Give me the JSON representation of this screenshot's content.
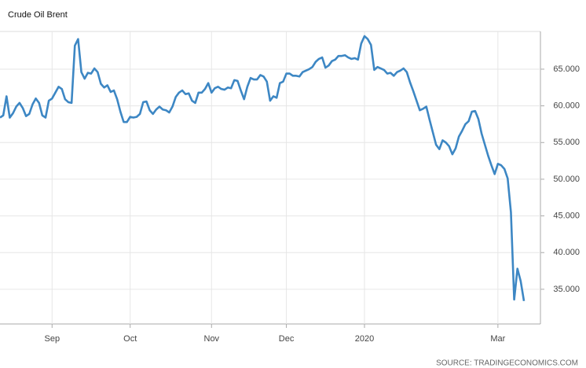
{
  "chart_data": {
    "type": "line",
    "title": "Crude Oil Brent",
    "source": "SOURCE: TRADINGECONOMICS.COM",
    "categories": [
      null,
      null,
      null,
      null,
      null,
      null,
      null,
      null,
      null,
      null,
      null,
      null,
      null,
      null,
      null,
      null,
      "Sep",
      null,
      null,
      null,
      null,
      null,
      null,
      null,
      null,
      null,
      null,
      null,
      null,
      null,
      null,
      null,
      null,
      null,
      null,
      null,
      null,
      null,
      null,
      null,
      "Oct",
      null,
      null,
      null,
      null,
      null,
      null,
      null,
      null,
      null,
      null,
      null,
      null,
      null,
      null,
      null,
      null,
      null,
      null,
      null,
      null,
      null,
      null,
      null,
      null,
      "Nov",
      null,
      null,
      null,
      null,
      null,
      null,
      null,
      null,
      null,
      null,
      null,
      null,
      null,
      null,
      null,
      null,
      null,
      null,
      null,
      null,
      null,
      null,
      "Dec",
      null,
      null,
      null,
      null,
      null,
      null,
      null,
      null,
      null,
      null,
      null,
      null,
      null,
      null,
      null,
      null,
      null,
      null,
      null,
      null,
      null,
      null,
      null,
      "2020",
      null,
      null,
      null,
      null,
      null,
      null,
      null,
      null,
      null,
      null,
      null,
      null,
      null,
      null,
      null,
      null,
      null,
      null,
      null,
      null,
      null,
      null,
      null,
      null,
      null,
      null,
      null,
      null,
      null,
      null,
      null,
      null,
      null,
      null,
      null,
      null,
      null,
      null,
      null,
      null,
      "Mar",
      null,
      null,
      null,
      null,
      null,
      null,
      null,
      null
    ],
    "series": [
      {
        "name": "Crude Oil Brent",
        "color": "#3d87c4",
        "values": [
          58.4,
          58.7,
          61.3,
          58.4,
          59.0,
          59.9,
          60.4,
          59.7,
          58.6,
          58.9,
          60.2,
          61.0,
          60.4,
          58.7,
          58.4,
          60.7,
          61.0,
          61.8,
          62.6,
          62.3,
          60.9,
          60.5,
          60.4,
          68.2,
          69.1,
          64.6,
          63.7,
          64.5,
          64.4,
          65.1,
          64.6,
          63.0,
          62.5,
          62.8,
          61.9,
          62.1,
          60.9,
          59.2,
          57.8,
          57.8,
          58.5,
          58.4,
          58.5,
          58.9,
          60.5,
          60.6,
          59.4,
          58.9,
          59.5,
          59.9,
          59.5,
          59.4,
          59.1,
          59.9,
          61.2,
          61.8,
          62.1,
          61.6,
          61.7,
          60.7,
          60.4,
          61.8,
          61.8,
          62.3,
          63.1,
          61.8,
          62.4,
          62.6,
          62.3,
          62.2,
          62.5,
          62.4,
          63.5,
          63.4,
          62.1,
          60.9,
          62.6,
          63.8,
          63.6,
          63.6,
          64.2,
          64.0,
          63.3,
          60.7,
          61.3,
          61.1,
          63.1,
          63.3,
          64.4,
          64.4,
          64.1,
          64.1,
          64.0,
          64.6,
          64.8,
          65.0,
          65.3,
          66.0,
          66.4,
          66.6,
          65.2,
          65.5,
          66.1,
          66.3,
          66.8,
          66.8,
          66.9,
          66.6,
          66.4,
          66.5,
          66.3,
          68.5,
          69.5,
          69.1,
          68.3,
          64.9,
          65.3,
          65.1,
          64.9,
          64.4,
          64.5,
          64.1,
          64.6,
          64.8,
          65.1,
          64.6,
          63.2,
          62.0,
          60.7,
          59.4,
          59.6,
          59.9,
          58.1,
          56.4,
          54.7,
          54.1,
          55.3,
          55.0,
          54.5,
          53.4,
          54.2,
          55.8,
          56.6,
          57.5,
          57.9,
          59.2,
          59.3,
          58.2,
          56.2,
          54.7,
          53.2,
          51.9,
          50.7,
          52.1,
          51.9,
          51.4,
          50.1,
          45.5,
          33.6,
          37.8,
          36.1,
          33.4
        ]
      }
    ],
    "ylim": [
      30.27,
      70.14
    ],
    "yticks": [
      {
        "value": 35,
        "label": "35.000"
      },
      {
        "value": 40,
        "label": "40.000"
      },
      {
        "value": 45,
        "label": "45.000"
      },
      {
        "value": 50,
        "label": "50.000"
      },
      {
        "value": 55,
        "label": "55.000"
      },
      {
        "value": 60,
        "label": "60.000"
      },
      {
        "value": 65,
        "label": "65.000"
      }
    ],
    "grid": true
  }
}
